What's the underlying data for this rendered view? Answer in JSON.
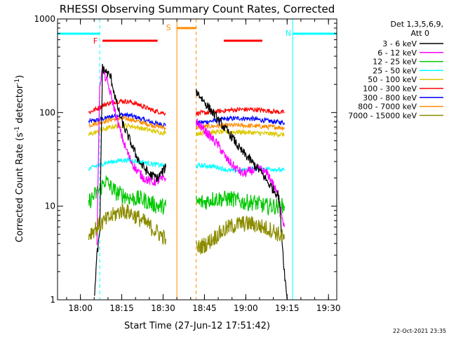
{
  "chart_data": {
    "type": "line",
    "title": "RHESSI Observing Summary Count Rates, Corrected",
    "xlabel": "Start Time (27-Jun-12 17:51:42)",
    "ylabel": "Corrected Count Rate (s⁻¹ detector⁻¹)",
    "ylabel_parts": {
      "a": "Corrected Count Rate (s",
      "sup1": "-1",
      "b": " detector",
      "sup2": "-1",
      "c": ")"
    },
    "y_scale": "log",
    "ylim": [
      1,
      1000
    ],
    "xlim": [
      "17:51:42",
      "19:33:00"
    ],
    "x_ticks": [
      "18:00",
      "18:15",
      "18:30",
      "18:45",
      "19:00",
      "19:15",
      "19:30"
    ],
    "y_ticks": [
      "1",
      "10",
      "100",
      "1000"
    ],
    "legend_header": [
      "Det 1,3,5,6,9,",
      "Att 0"
    ],
    "legend_position": "right",
    "footer_date": "22-Oct-2021 23:35",
    "series": [
      {
        "name": "3 - 6 keV",
        "color": "#000000",
        "segments": [
          [
            [
              "18:05",
              1
            ],
            [
              "18:06",
              3
            ],
            [
              "18:07",
              5
            ],
            [
              "18:08",
              300
            ],
            [
              "18:11",
              240
            ],
            [
              "18:13",
              130
            ],
            [
              "18:15",
              80
            ],
            [
              "18:18",
              50
            ],
            [
              "18:20",
              36
            ],
            [
              "18:22",
              28
            ],
            [
              "18:25",
              22
            ],
            [
              "18:28",
              20
            ],
            [
              "18:31",
              26
            ]
          ],
          [
            [
              "18:42",
              170
            ],
            [
              "18:45",
              130
            ],
            [
              "18:48",
              100
            ],
            [
              "18:52",
              70
            ],
            [
              "18:55",
              55
            ],
            [
              "18:58",
              40
            ],
            [
              "19:00",
              35
            ],
            [
              "19:03",
              28
            ],
            [
              "19:06",
              22
            ],
            [
              "19:08",
              18
            ],
            [
              "19:10",
              15
            ],
            [
              "19:12",
              13
            ],
            [
              "19:13",
              5
            ],
            [
              "19:14",
              2
            ],
            [
              "19:15",
              1
            ]
          ]
        ]
      },
      {
        "name": "6 - 12 keV",
        "color": "#ff00ff",
        "segments": [
          [
            [
              "18:06",
              4
            ],
            [
              "18:07",
              200
            ],
            [
              "18:08",
              290
            ],
            [
              "18:10",
              200
            ],
            [
              "18:12",
              120
            ],
            [
              "18:14",
              70
            ],
            [
              "18:16",
              45
            ],
            [
              "18:18",
              32
            ],
            [
              "18:20",
              25
            ],
            [
              "18:23",
              20
            ],
            [
              "18:26",
              18
            ],
            [
              "18:29",
              19
            ],
            [
              "18:31",
              20
            ]
          ],
          [
            [
              "18:42",
              80
            ],
            [
              "18:46",
              60
            ],
            [
              "18:50",
              45
            ],
            [
              "18:53",
              32
            ],
            [
              "18:56",
              26
            ],
            [
              "18:59",
              22
            ],
            [
              "19:02",
              24
            ],
            [
              "19:05",
              25
            ],
            [
              "19:08",
              22
            ],
            [
              "19:10",
              17
            ],
            [
              "19:12",
              12
            ],
            [
              "19:14",
              6
            ]
          ]
        ]
      },
      {
        "name": "12 - 25 keV",
        "color": "#00c800",
        "segments": [
          [
            [
              "18:03",
              11
            ],
            [
              "18:05",
              13
            ],
            [
              "18:07",
              15
            ],
            [
              "18:09",
              19
            ],
            [
              "18:11",
              16
            ],
            [
              "18:13",
              14
            ],
            [
              "18:16",
              13
            ],
            [
              "18:19",
              12
            ],
            [
              "18:22",
              12
            ],
            [
              "18:25",
              11
            ],
            [
              "18:28",
              10
            ],
            [
              "18:31",
              10
            ]
          ],
          [
            [
              "18:42",
              11
            ],
            [
              "18:45",
              11
            ],
            [
              "18:48",
              12
            ],
            [
              "18:51",
              12
            ],
            [
              "18:55",
              12
            ],
            [
              "18:59",
              11
            ],
            [
              "19:03",
              11
            ],
            [
              "19:07",
              10
            ],
            [
              "19:11",
              10
            ],
            [
              "19:14",
              10
            ]
          ]
        ]
      },
      {
        "name": "25 - 50 keV",
        "color": "#00ffff",
        "segments": [
          [
            [
              "18:03",
              25
            ],
            [
              "18:06",
              27
            ],
            [
              "18:09",
              29
            ],
            [
              "18:12",
              30
            ],
            [
              "18:15",
              31
            ],
            [
              "18:18",
              31
            ],
            [
              "18:21",
              30
            ],
            [
              "18:24",
              29
            ],
            [
              "18:27",
              28
            ],
            [
              "18:31",
              27
            ]
          ],
          [
            [
              "18:42",
              27
            ],
            [
              "18:46",
              27
            ],
            [
              "18:50",
              26
            ],
            [
              "18:54",
              24
            ],
            [
              "18:58",
              24
            ],
            [
              "19:02",
              25
            ],
            [
              "19:06",
              25
            ],
            [
              "19:10",
              25
            ],
            [
              "19:14",
              24
            ]
          ]
        ]
      },
      {
        "name": "50 - 100 keV",
        "color": "#dcc800",
        "segments": [
          [
            [
              "18:03",
              58
            ],
            [
              "18:06",
              62
            ],
            [
              "18:09",
              67
            ],
            [
              "18:12",
              71
            ],
            [
              "18:15",
              73
            ],
            [
              "18:18",
              72
            ],
            [
              "18:21",
              69
            ],
            [
              "18:24",
              66
            ],
            [
              "18:27",
              63
            ],
            [
              "18:31",
              60
            ]
          ],
          [
            [
              "18:42",
              60
            ],
            [
              "18:46",
              61
            ],
            [
              "18:50",
              62
            ],
            [
              "18:54",
              62
            ],
            [
              "18:58",
              62
            ],
            [
              "19:02",
              61
            ],
            [
              "19:06",
              60
            ],
            [
              "19:10",
              59
            ],
            [
              "19:14",
              58
            ]
          ]
        ]
      },
      {
        "name": "100 - 300 keV",
        "color": "#ff0000",
        "segments": [
          [
            [
              "18:03",
              100
            ],
            [
              "18:06",
              110
            ],
            [
              "18:09",
              122
            ],
            [
              "18:12",
              130
            ],
            [
              "18:15",
              133
            ],
            [
              "18:18",
              130
            ],
            [
              "18:21",
              122
            ],
            [
              "18:24",
              112
            ],
            [
              "18:27",
              104
            ],
            [
              "18:31",
              98
            ]
          ],
          [
            [
              "18:42",
              98
            ],
            [
              "18:46",
              100
            ],
            [
              "18:50",
              103
            ],
            [
              "18:54",
              106
            ],
            [
              "18:58",
              108
            ],
            [
              "19:02",
              108
            ],
            [
              "19:06",
              106
            ],
            [
              "19:10",
              103
            ],
            [
              "19:14",
              100
            ]
          ]
        ]
      },
      {
        "name": "300 - 800 keV",
        "color": "#0000ff",
        "segments": [
          [
            [
              "18:03",
              80
            ],
            [
              "18:06",
              83
            ],
            [
              "18:09",
              87
            ],
            [
              "18:12",
              92
            ],
            [
              "18:15",
              95
            ],
            [
              "18:18",
              93
            ],
            [
              "18:21",
              88
            ],
            [
              "18:24",
              82
            ],
            [
              "18:27",
              77
            ],
            [
              "18:31",
              74
            ]
          ],
          [
            [
              "18:42",
              77
            ],
            [
              "18:46",
              80
            ],
            [
              "18:50",
              83
            ],
            [
              "18:54",
              86
            ],
            [
              "18:58",
              87
            ],
            [
              "19:02",
              86
            ],
            [
              "19:06",
              83
            ],
            [
              "19:10",
              80
            ],
            [
              "19:14",
              78
            ]
          ]
        ]
      },
      {
        "name": "800 - 7000 keV",
        "color": "#ff8c00",
        "segments": [
          [
            [
              "18:03",
              73
            ],
            [
              "18:06",
              77
            ],
            [
              "18:09",
              81
            ],
            [
              "18:12",
              85
            ],
            [
              "18:15",
              87
            ],
            [
              "18:18",
              85
            ],
            [
              "18:21",
              80
            ],
            [
              "18:24",
              76
            ],
            [
              "18:27",
              72
            ],
            [
              "18:31",
              69
            ]
          ],
          [
            [
              "18:42",
              69
            ],
            [
              "18:46",
              71
            ],
            [
              "18:50",
              72
            ],
            [
              "18:54",
              73
            ],
            [
              "18:58",
              73
            ],
            [
              "19:02",
              72
            ],
            [
              "19:06",
              71
            ],
            [
              "19:10",
              70
            ],
            [
              "19:14",
              69
            ]
          ]
        ]
      },
      {
        "name": "7000 - 15000 keV",
        "color": "#8c8c00",
        "segments": [
          [
            [
              "18:03",
              5
            ],
            [
              "18:06",
              6
            ],
            [
              "18:09",
              7
            ],
            [
              "18:12",
              8
            ],
            [
              "18:15",
              9
            ],
            [
              "18:18",
              8.5
            ],
            [
              "18:21",
              7.5
            ],
            [
              "18:24",
              6.5
            ],
            [
              "18:27",
              5.5
            ],
            [
              "18:31",
              4.5
            ]
          ],
          [
            [
              "18:42",
              3.5
            ],
            [
              "18:46",
              4
            ],
            [
              "18:50",
              5
            ],
            [
              "18:54",
              6
            ],
            [
              "18:58",
              6.5
            ],
            [
              "19:02",
              6.5
            ],
            [
              "19:06",
              6
            ],
            [
              "19:10",
              5.5
            ],
            [
              "19:14",
              4.5
            ]
          ]
        ]
      }
    ],
    "annotations": {
      "flare_bars": [
        {
          "label": "F",
          "start": "18:08",
          "end": "18:28",
          "color": "#ff0000"
        },
        {
          "label": "",
          "start": "18:52",
          "end": "19:06",
          "color": "#ff0000"
        }
      ],
      "night_bars": [
        {
          "start": "17:51:42",
          "end": "18:07",
          "color": "#00ffff"
        },
        {
          "label": "N",
          "start": "19:17",
          "end": "19:33",
          "color": "#00ffff"
        }
      ],
      "saa_bar": {
        "label": "S",
        "start": "18:35",
        "end": "18:42",
        "color": "#ff8c00"
      },
      "vlines": [
        {
          "time": "18:07",
          "color": "#00ffff",
          "style": "dashed"
        },
        {
          "time": "19:17",
          "color": "#00ffff",
          "style": "solid"
        },
        {
          "time": "19:33",
          "color": "#00ffff",
          "style": "dashed"
        },
        {
          "time": "18:35",
          "color": "#ff8c00",
          "style": "solid"
        },
        {
          "time": "18:42",
          "color": "#ff8c00",
          "style": "dashed"
        }
      ]
    }
  }
}
